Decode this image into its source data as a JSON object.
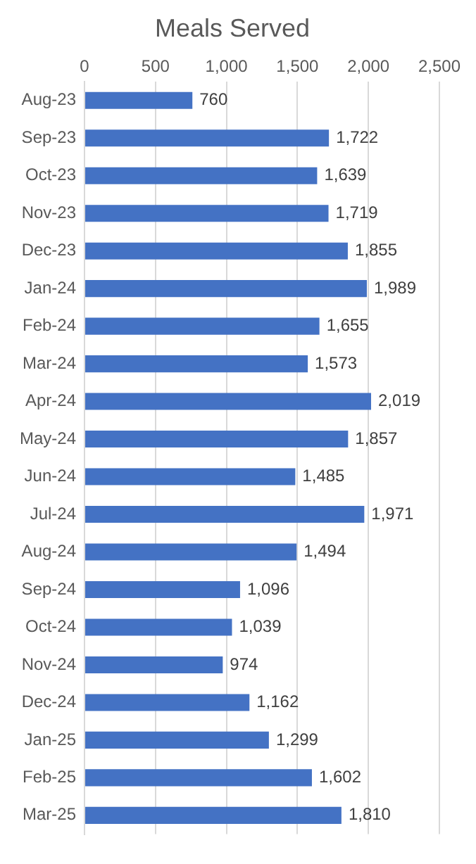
{
  "chart_data": {
    "type": "bar",
    "orientation": "horizontal",
    "title": "Meals Served",
    "categories": [
      "Aug-23",
      "Sep-23",
      "Oct-23",
      "Nov-23",
      "Dec-23",
      "Jan-24",
      "Feb-24",
      "Mar-24",
      "Apr-24",
      "May-24",
      "Jun-24",
      "Jul-24",
      "Aug-24",
      "Sep-24",
      "Oct-24",
      "Nov-24",
      "Dec-24",
      "Jan-25",
      "Feb-25",
      "Mar-25"
    ],
    "values": [
      760,
      1722,
      1639,
      1719,
      1855,
      1989,
      1655,
      1573,
      2019,
      1857,
      1485,
      1971,
      1494,
      1096,
      1039,
      974,
      1162,
      1299,
      1602,
      1810
    ],
    "value_labels": [
      "760",
      "1,722",
      "1,639",
      "1,719",
      "1,855",
      "1,989",
      "1,655",
      "1,573",
      "2,019",
      "1,857",
      "1,485",
      "1,971",
      "1,494",
      "1,096",
      "1,039",
      "974",
      "1,162",
      "1,299",
      "1,602",
      "1,810"
    ],
    "color": "#4472c4",
    "xlim": [
      0,
      2500
    ],
    "xticks": [
      0,
      500,
      {
        "value": 1000,
        "label": "1,000"
      },
      {
        "value": 1500,
        "label": "1,500"
      },
      {
        "value": 2000,
        "label": "2,000"
      },
      {
        "value": 2500,
        "label": "2,500"
      }
    ],
    "grid": "x",
    "legend": false
  }
}
